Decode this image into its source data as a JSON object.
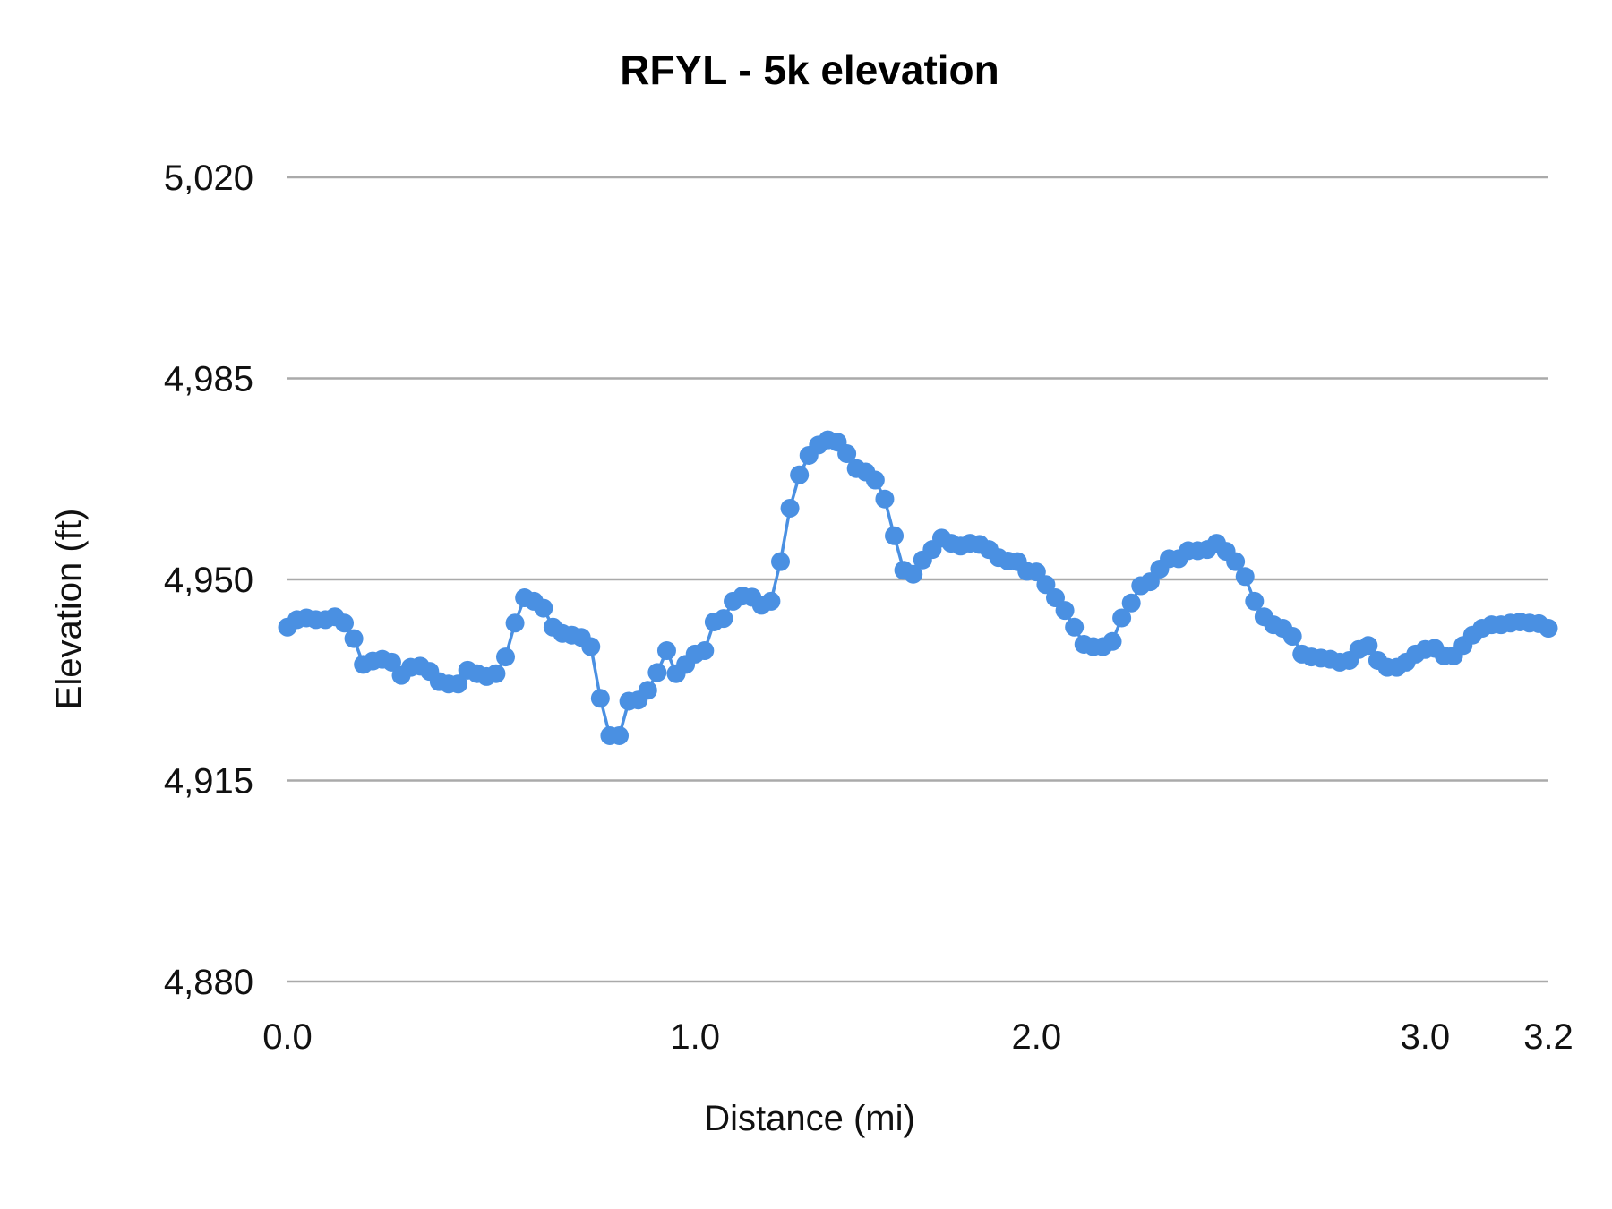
{
  "chart_data": {
    "type": "line",
    "title": "RFYL - 5k elevation",
    "xlabel": "Distance (mi)",
    "ylabel": "Elevation (ft)",
    "ylim": [
      4880,
      5020
    ],
    "yticks": [
      "4,880",
      "4,915",
      "4,950",
      "4,985",
      "5,020"
    ],
    "ytick_values": [
      4880,
      4915,
      4950,
      4985,
      5020
    ],
    "x_ticks": [
      {
        "label": "0.0",
        "at_point": 0
      },
      {
        "label": "1.0",
        "at_point": 43
      },
      {
        "label": "2.0",
        "at_point": 79
      },
      {
        "label": "3.0",
        "at_point": 120
      },
      {
        "label": "3.2",
        "at_point": 133
      }
    ],
    "grid": true,
    "legend": "none",
    "markers": true,
    "colors": {
      "series": "#4a90e2",
      "grid": "#aaaaaa"
    },
    "series": [
      {
        "values": [
          4941.7,
          4943.0,
          4943.3,
          4943.0,
          4943.0,
          4943.5,
          4942.4,
          4939.7,
          4935.2,
          4935.8,
          4936.1,
          4935.6,
          4933.3,
          4934.7,
          4934.9,
          4934.0,
          4932.2,
          4931.8,
          4931.8,
          4934.2,
          4933.6,
          4933.1,
          4933.6,
          4936.5,
          4942.4,
          4946.8,
          4946.2,
          4945.0,
          4941.7,
          4940.6,
          4940.3,
          4939.9,
          4938.3,
          4929.3,
          4922.8,
          4922.8,
          4928.8,
          4929.0,
          4930.7,
          4933.8,
          4937.6,
          4933.6,
          4935.2,
          4937.0,
          4937.6,
          4942.6,
          4943.2,
          4946.2,
          4947.1,
          4946.9,
          4945.5,
          4946.2,
          4953.1,
          4962.4,
          4968.2,
          4971.6,
          4973.4,
          4974.3,
          4973.9,
          4971.9,
          4969.3,
          4968.7,
          4967.3,
          4964.0,
          4957.6,
          4951.6,
          4950.9,
          4953.4,
          4955.2,
          4957.2,
          4956.3,
          4955.8,
          4956.3,
          4956.1,
          4955.2,
          4953.8,
          4953.2,
          4953.1,
          4951.4,
          4951.3,
          4949.1,
          4946.8,
          4944.6,
          4941.7,
          4938.7,
          4938.3,
          4938.3,
          4939.2,
          4943.3,
          4945.9,
          4948.9,
          4949.6,
          4951.8,
          4953.6,
          4953.6,
          4955.0,
          4955.0,
          4955.2,
          4956.3,
          4954.9,
          4953.1,
          4950.5,
          4946.2,
          4943.5,
          4942.1,
          4941.5,
          4940.1,
          4937.0,
          4936.5,
          4936.3,
          4936.1,
          4935.6,
          4935.9,
          4937.8,
          4938.5,
          4935.9,
          4934.7,
          4934.7,
          4935.6,
          4937.0,
          4937.8,
          4938.0,
          4936.7,
          4936.7,
          4938.5,
          4940.3,
          4941.5,
          4942.1,
          4942.1,
          4942.4,
          4942.6,
          4942.4,
          4942.3,
          4941.5
        ]
      }
    ]
  }
}
